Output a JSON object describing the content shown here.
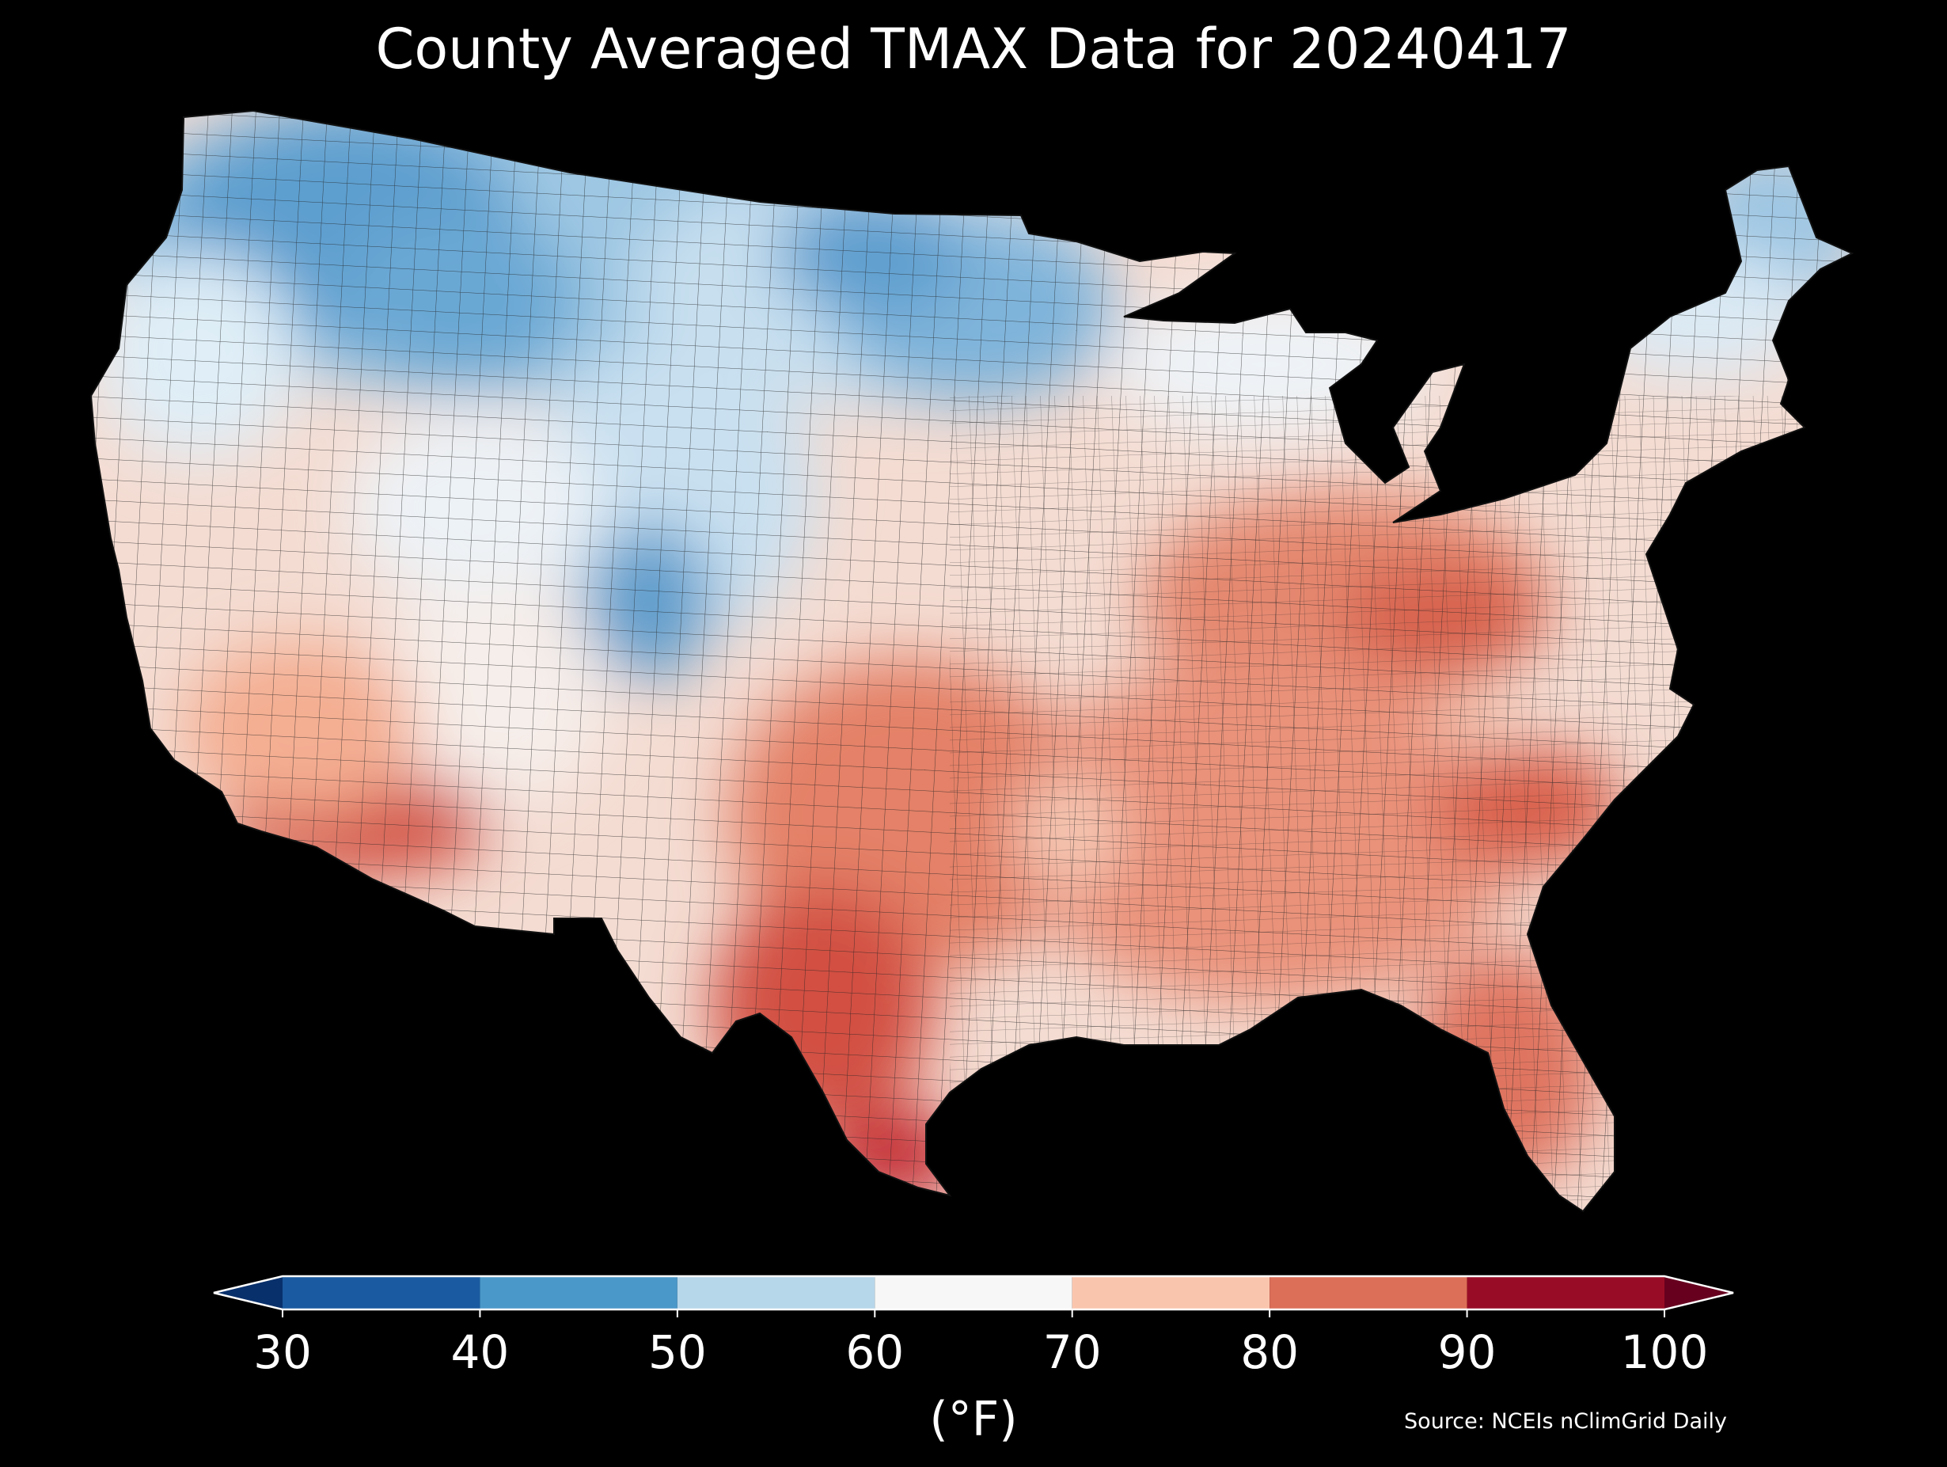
{
  "title": "County Averaged TMAX Data for 20240417",
  "colorbar": {
    "unit_label": "(°F)",
    "ticks": [
      "30",
      "40",
      "50",
      "60",
      "70",
      "80",
      "90",
      "100"
    ],
    "bins": [
      {
        "min": 30,
        "max": 40,
        "color": "#1a5aa0"
      },
      {
        "min": 40,
        "max": 50,
        "color": "#4a98c9"
      },
      {
        "min": 50,
        "max": 60,
        "color": "#b6d6ea"
      },
      {
        "min": 60,
        "max": 70,
        "color": "#f7f7f7"
      },
      {
        "min": 70,
        "max": 80,
        "color": "#fac5ad"
      },
      {
        "min": 80,
        "max": 90,
        "color": "#dc6f58"
      },
      {
        "min": 90,
        "max": 100,
        "color": "#990c26"
      }
    ],
    "under_color": "#08306b",
    "over_color": "#67001f",
    "extend": "both"
  },
  "source": "Source: NCEIs nClimGrid Daily",
  "map": {
    "region": "Contiguous United States",
    "variable": "TMAX",
    "unit": "°F",
    "county_borders": true,
    "cool_regions": [
      "Pacific Northwest",
      "Northern Rockies",
      "Northern Plains",
      "Upper Midwest",
      "Northern New England",
      "Colorado Rockies"
    ],
    "warm_regions": [
      "Desert Southwest",
      "South Texas",
      "Ohio Valley",
      "Southeast",
      "Florida"
    ]
  }
}
